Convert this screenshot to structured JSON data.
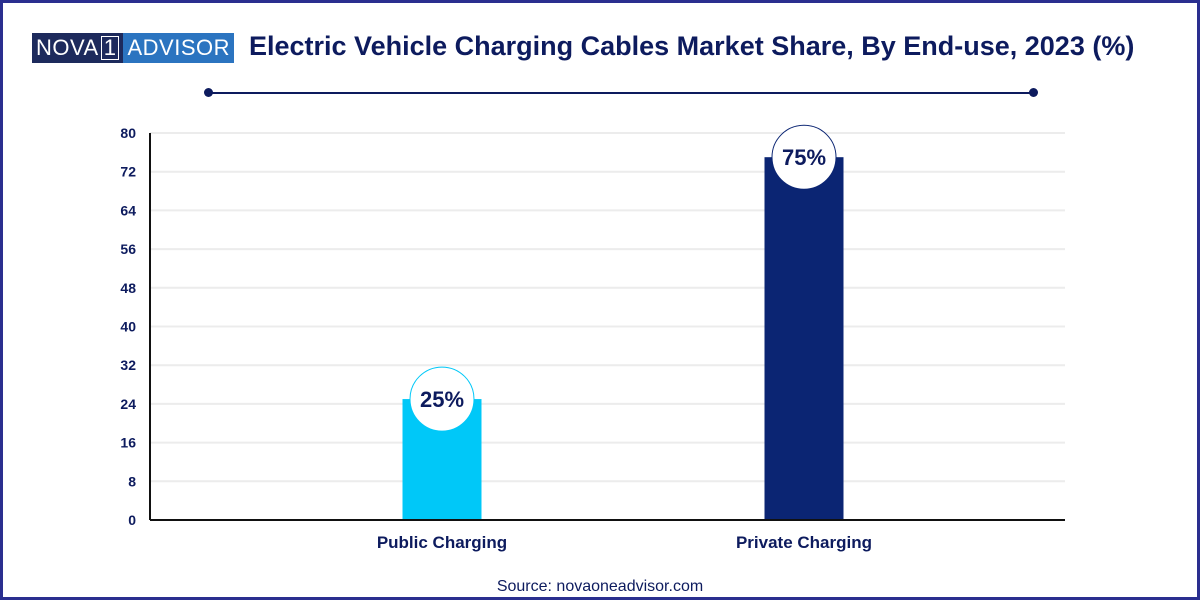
{
  "logo": {
    "part1": "NOVA",
    "part2": "1",
    "part3": "ADVISOR"
  },
  "source": "Source: novaoneadvisor.com",
  "chart_data": {
    "type": "bar",
    "title": "Electric Vehicle Charging Cables Market Share, By End-use, 2023 (%)",
    "categories": [
      "Public Charging",
      "Private Charging"
    ],
    "values": [
      25,
      75
    ],
    "data_labels": [
      "25%",
      "75%"
    ],
    "colors": [
      "#00c8f8",
      "#0b2573"
    ],
    "ylim": [
      0,
      80
    ],
    "yticks": [
      0,
      8,
      16,
      24,
      32,
      40,
      48,
      56,
      64,
      72,
      80
    ],
    "grid": true,
    "xlabel": "",
    "ylabel": ""
  }
}
